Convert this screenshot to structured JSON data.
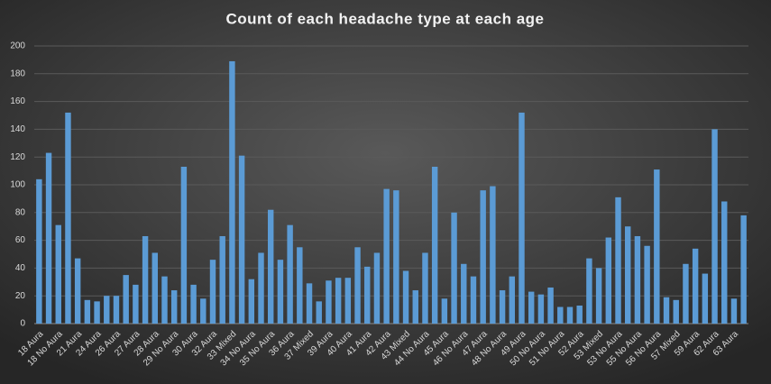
{
  "chart_data": {
    "type": "bar",
    "title": "Count of each headache type at each age",
    "categories": [
      "18 Aura",
      null,
      "18 No Aura",
      null,
      "21 Aura",
      null,
      "24 Aura",
      null,
      "26 Aura",
      null,
      "27 Aura",
      null,
      "28 Aura",
      null,
      "29 No Aura",
      null,
      "30 Aura",
      null,
      "32 Aura",
      null,
      "33 Mixed",
      null,
      "34 No Aura",
      null,
      "35 No Aura",
      null,
      "36 Aura",
      null,
      "37 Mixed",
      null,
      "39 Aura",
      null,
      "40 Aura",
      null,
      "41 Aura",
      null,
      "42 Aura",
      null,
      "43 Mixed",
      null,
      "44 No Aura",
      null,
      "45 Aura",
      null,
      "46 No Aura",
      null,
      "47 Aura",
      null,
      "48 No Aura",
      null,
      "49 Aura",
      null,
      "50 No Aura",
      null,
      "51 No Aura",
      null,
      "52 Aura",
      null,
      "53 Mixed",
      null,
      "53 No Aura",
      null,
      "55 No Aura",
      null,
      "56 No Aura",
      null,
      "57 Mixed",
      null,
      "59 Aura",
      null,
      "62 Aura",
      null,
      "63 Aura",
      null
    ],
    "values": [
      104,
      123,
      71,
      152,
      47,
      17,
      16,
      20,
      20,
      35,
      28,
      63,
      51,
      34,
      24,
      113,
      28,
      18,
      46,
      63,
      189,
      121,
      32,
      51,
      82,
      46,
      71,
      55,
      29,
      16,
      31,
      33,
      33,
      55,
      41,
      51,
      97,
      96,
      38,
      24,
      51,
      113,
      18,
      80,
      43,
      34,
      96,
      99,
      24,
      34,
      152,
      23,
      21,
      26,
      12,
      12,
      13,
      47,
      40,
      62,
      91,
      70,
      63,
      56,
      111,
      19,
      17,
      43,
      54,
      36,
      140,
      88,
      18,
      78
    ],
    "color": "#5b9bd5",
    "ylim": [
      0,
      200
    ],
    "yticks": [
      0,
      20,
      40,
      60,
      80,
      100,
      120,
      140,
      160,
      180,
      200
    ],
    "grid": true
  }
}
